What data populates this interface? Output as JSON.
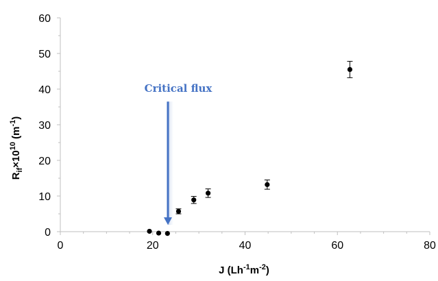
{
  "chart_data": {
    "type": "scatter",
    "title": "",
    "xlabel": {
      "main": "J (Lh",
      "sup1": "-1",
      "mid": "m",
      "sup2": "-2",
      "end": ")"
    },
    "ylabel": {
      "main": "R",
      "sub": "if",
      "times": "×10",
      "sup": "10",
      "unit_open": " (m",
      "unit_sup": "-1",
      "unit_close": ")"
    },
    "xlim": [
      0,
      80
    ],
    "ylim": [
      0,
      60
    ],
    "x_ticks": [
      "0",
      "20",
      "40",
      "60",
      "80"
    ],
    "y_ticks": [
      "0",
      "10",
      "20",
      "30",
      "40",
      "50",
      "60"
    ],
    "grid": false,
    "legend": "none",
    "series": [
      {
        "points": [
          {
            "x": 19.3,
            "y": 0.1,
            "err": 0
          },
          {
            "x": 21.3,
            "y": -0.4,
            "err": 0
          },
          {
            "x": 23.2,
            "y": -0.5,
            "err": 0
          },
          {
            "x": 25.6,
            "y": 5.7,
            "err": 0.7
          },
          {
            "x": 28.9,
            "y": 8.9,
            "err": 1.0
          },
          {
            "x": 32.0,
            "y": 10.8,
            "err": 1.2
          },
          {
            "x": 44.8,
            "y": 13.2,
            "err": 1.3
          },
          {
            "x": 62.7,
            "y": 45.5,
            "err": 2.3
          }
        ]
      }
    ],
    "annotation": {
      "text": "Critical flux",
      "arrow_x": 23.3,
      "arrow_from_y": 36.5,
      "arrow_to_y": 1.9,
      "color": "#4472C4"
    },
    "colors": {
      "marker": "#000000",
      "axis": "#bfbfbf",
      "arrow": "#4472C4"
    }
  }
}
